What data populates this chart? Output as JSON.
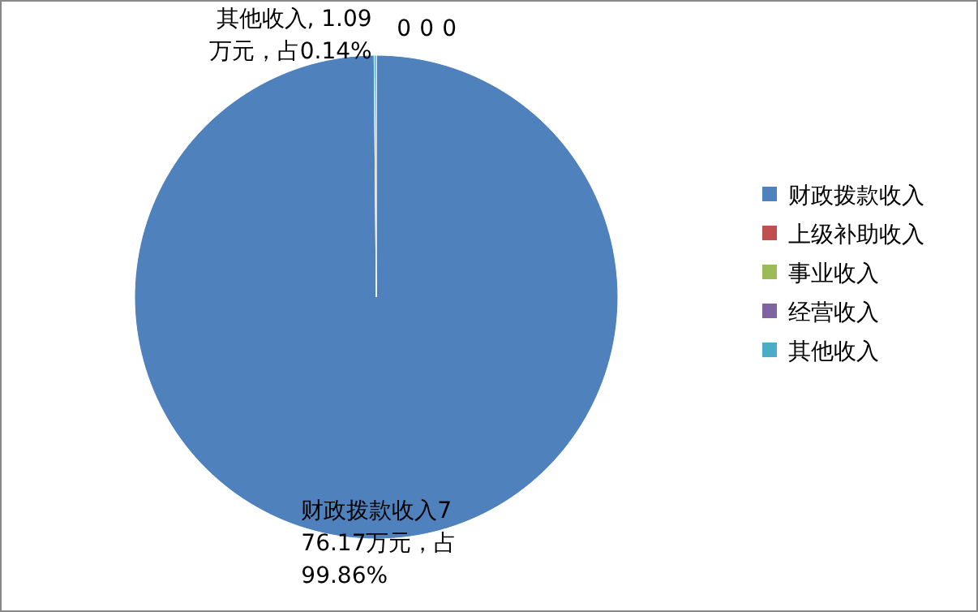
{
  "chart_data": {
    "type": "pie",
    "categories": [
      "财政拨款收入",
      "上级补助收入",
      "事业收入",
      "经营收入",
      "其他收入"
    ],
    "values": [
      776.17,
      0,
      0,
      0,
      1.09
    ],
    "colors": [
      "#4f81bd",
      "#c0504d",
      "#9bbb59",
      "#8064a2",
      "#4bacc6"
    ],
    "value_labels": [
      "财政拨款收入776.17万元，占99.86%",
      "0",
      "0",
      "0",
      "其他收入, 1.09万元，占0.14%"
    ],
    "legend": "right"
  }
}
